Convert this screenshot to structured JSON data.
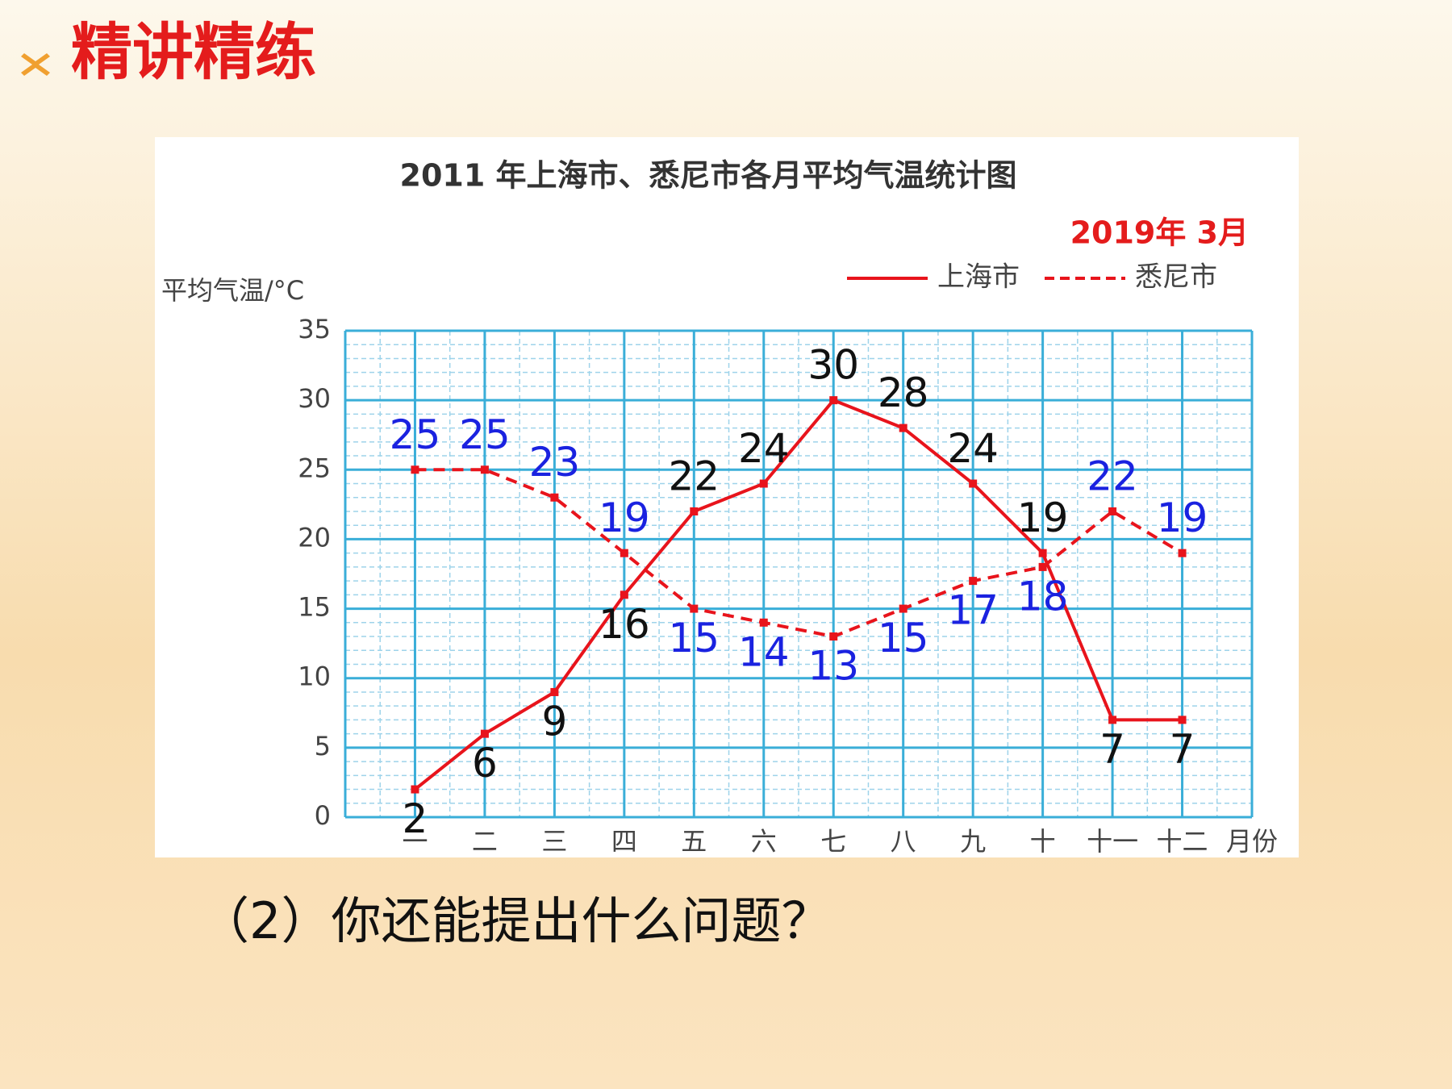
{
  "slide": {
    "title": "精讲精练",
    "question": "（2）你还能提出什么问题？"
  },
  "chart_data": {
    "type": "line",
    "title": "2011 年上海市、悉尼市各月平均气温统计图",
    "subtitle": "2019年 3月",
    "y_label": "平均气温/°C",
    "x_label": "月份",
    "categories": [
      "一",
      "二",
      "三",
      "四",
      "五",
      "六",
      "七",
      "八",
      "九",
      "十",
      "十一",
      "十二"
    ],
    "series": [
      {
        "name": "上海市",
        "color": "#e8141c",
        "style": "solid",
        "label_color": "#111111",
        "values": [
          2,
          6,
          9,
          16,
          22,
          24,
          30,
          28,
          24,
          19,
          7,
          7
        ]
      },
      {
        "name": "悉尼市",
        "color": "#e8141c",
        "style": "dashed",
        "label_color": "#1a22e0",
        "values": [
          25,
          25,
          23,
          19,
          15,
          14,
          13,
          15,
          17,
          18,
          22,
          19
        ]
      }
    ],
    "ylim": [
      0,
      35
    ],
    "yticks": [
      0,
      5,
      10,
      15,
      20,
      25,
      30,
      35
    ],
    "grid": true,
    "legend": "top-right"
  }
}
